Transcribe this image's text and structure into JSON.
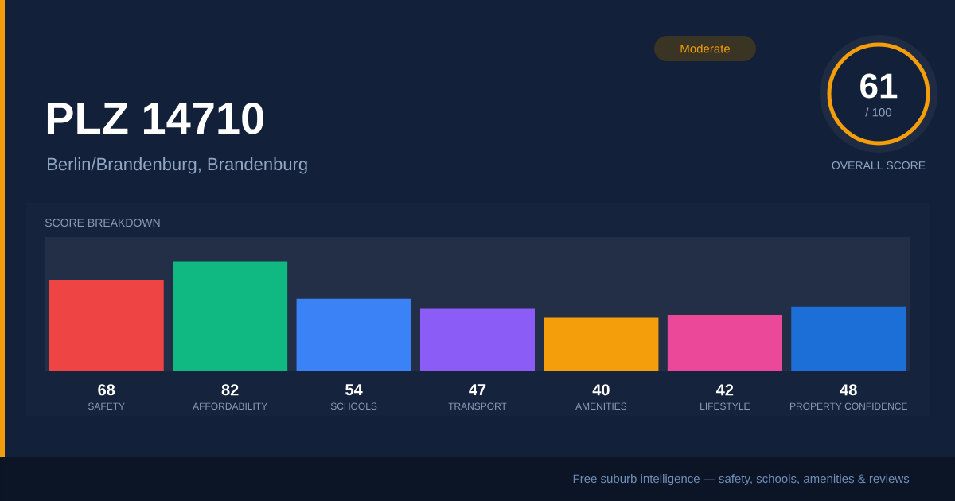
{
  "chart_data": {
    "type": "bar",
    "title": "PLZ 14710",
    "subtitle": "Berlin/Brandenburg, Brandenburg",
    "categories": [
      "SAFETY",
      "AFFORDABILITY",
      "SCHOOLS",
      "TRANSPORT",
      "AMENITIES",
      "LIFESTYLE",
      "PROPERTY CONFIDENCE"
    ],
    "values": [
      68,
      82,
      54,
      47,
      40,
      42,
      48
    ],
    "colors": [
      "#ef4444",
      "#10b981",
      "#3b82f6",
      "#8b5cf6",
      "#f59e0b",
      "#ec4899",
      "#1d6fd8"
    ],
    "ylim": [
      0,
      100
    ],
    "data_labels": true,
    "annotations": [
      "Moderate",
      "61",
      "/ 100",
      "OVERALL SCORE",
      "SCORE BREAKDOWN",
      "Free suburb intelligence — safety, schools, amenities & reviews"
    ]
  }
}
